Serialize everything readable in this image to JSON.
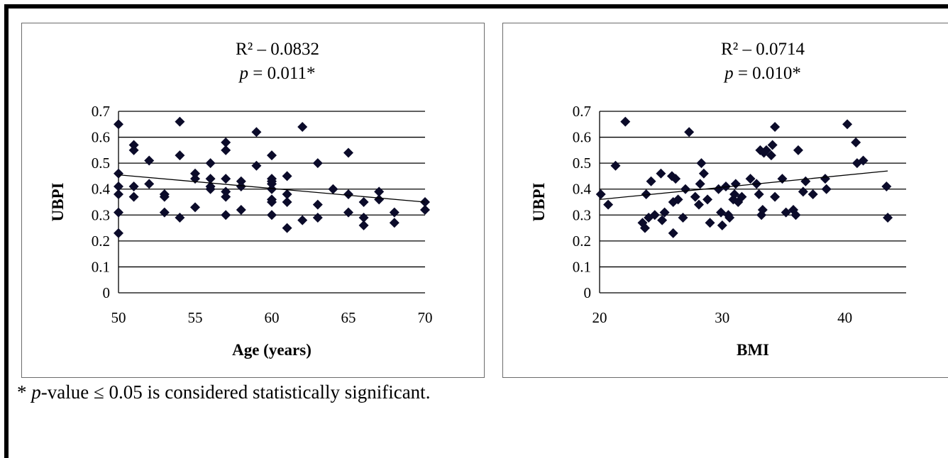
{
  "footnote": {
    "star": "* ",
    "p_italic": "p",
    "rest": "-value ≤ 0.05 is considered statistically significant."
  },
  "chart_data": [
    {
      "type": "scatter",
      "stat_line1": "R² – 0.0832",
      "stat_p_italic": "p",
      "stat_p_rest": " = 0.011*",
      "xlabel": "Age (years)",
      "ylabel": "UBPI",
      "xlim": [
        50,
        70
      ],
      "ylim": [
        0,
        0.7
      ],
      "x_ticks": [
        50,
        55,
        60,
        65,
        70
      ],
      "y_ticks": [
        0,
        0.1,
        0.2,
        0.3,
        0.4,
        0.5,
        0.6,
        0.7
      ],
      "x_tick_labels": [
        "50",
        "55",
        "60",
        "65",
        "70"
      ],
      "y_tick_labels": [
        "0",
        "0.1",
        "0.2",
        "0.3",
        "0.4",
        "0.5",
        "0.6",
        "0.7"
      ],
      "grid": "horizontal",
      "marker_color": "#0b0b2a",
      "trendline": {
        "x": [
          50,
          70
        ],
        "y": [
          0.455,
          0.35
        ]
      },
      "points": [
        [
          50,
          0.65
        ],
        [
          50,
          0.46
        ],
        [
          50,
          0.41
        ],
        [
          50,
          0.38
        ],
        [
          50,
          0.31
        ],
        [
          50,
          0.23
        ],
        [
          51,
          0.57
        ],
        [
          51,
          0.55
        ],
        [
          51,
          0.41
        ],
        [
          51,
          0.37
        ],
        [
          52,
          0.51
        ],
        [
          52,
          0.42
        ],
        [
          53,
          0.38
        ],
        [
          53,
          0.37
        ],
        [
          53,
          0.31
        ],
        [
          54,
          0.66
        ],
        [
          54,
          0.53
        ],
        [
          54,
          0.29
        ],
        [
          55,
          0.46
        ],
        [
          55,
          0.44
        ],
        [
          55,
          0.33
        ],
        [
          56,
          0.5
        ],
        [
          56,
          0.44
        ],
        [
          56,
          0.41
        ],
        [
          56,
          0.4
        ],
        [
          57,
          0.58
        ],
        [
          57,
          0.55
        ],
        [
          57,
          0.44
        ],
        [
          57,
          0.39
        ],
        [
          57,
          0.37
        ],
        [
          57,
          0.3
        ],
        [
          58,
          0.43
        ],
        [
          58,
          0.41
        ],
        [
          58,
          0.32
        ],
        [
          59,
          0.62
        ],
        [
          59,
          0.49
        ],
        [
          60,
          0.53
        ],
        [
          60,
          0.44
        ],
        [
          60,
          0.43
        ],
        [
          60,
          0.42
        ],
        [
          60,
          0.4
        ],
        [
          60,
          0.36
        ],
        [
          60,
          0.35
        ],
        [
          60,
          0.3
        ],
        [
          61,
          0.45
        ],
        [
          61,
          0.38
        ],
        [
          61,
          0.35
        ],
        [
          61,
          0.25
        ],
        [
          62,
          0.64
        ],
        [
          62,
          0.28
        ],
        [
          63,
          0.5
        ],
        [
          63,
          0.34
        ],
        [
          63,
          0.29
        ],
        [
          64,
          0.4
        ],
        [
          65,
          0.54
        ],
        [
          65,
          0.38
        ],
        [
          65,
          0.31
        ],
        [
          66,
          0.35
        ],
        [
          66,
          0.29
        ],
        [
          66,
          0.26
        ],
        [
          67,
          0.39
        ],
        [
          67,
          0.36
        ],
        [
          68,
          0.31
        ],
        [
          68,
          0.27
        ],
        [
          70,
          0.35
        ],
        [
          70,
          0.32
        ]
      ]
    },
    {
      "type": "scatter",
      "stat_line1": "R² – 0.0714",
      "stat_p_italic": "p",
      "stat_p_rest": " = 0.010*",
      "xlabel": "BMI",
      "ylabel": "UBPI",
      "xlim": [
        20,
        45
      ],
      "ylim": [
        0,
        0.7
      ],
      "x_ticks": [
        20,
        30,
        40
      ],
      "y_ticks": [
        0,
        0.1,
        0.2,
        0.3,
        0.4,
        0.5,
        0.6,
        0.7
      ],
      "x_tick_labels": [
        "20",
        "30",
        "40"
      ],
      "y_tick_labels": [
        "0",
        "0.1",
        "0.2",
        "0.3",
        "0.4",
        "0.5",
        "0.6",
        "0.7"
      ],
      "grid": "horizontal",
      "marker_color": "#0b0b2a",
      "trendline": {
        "x": [
          20,
          43.5
        ],
        "y": [
          0.36,
          0.47
        ]
      },
      "points": [
        [
          20.1,
          0.38
        ],
        [
          20.7,
          0.34
        ],
        [
          21.3,
          0.49
        ],
        [
          22.1,
          0.66
        ],
        [
          23.5,
          0.27
        ],
        [
          23.7,
          0.25
        ],
        [
          23.8,
          0.38
        ],
        [
          24.0,
          0.29
        ],
        [
          24.2,
          0.43
        ],
        [
          24.5,
          0.3
        ],
        [
          25.0,
          0.46
        ],
        [
          25.1,
          0.28
        ],
        [
          25.3,
          0.31
        ],
        [
          25.9,
          0.45
        ],
        [
          26.0,
          0.23
        ],
        [
          26.0,
          0.35
        ],
        [
          26.2,
          0.44
        ],
        [
          26.4,
          0.36
        ],
        [
          26.8,
          0.29
        ],
        [
          27.0,
          0.4
        ],
        [
          27.3,
          0.62
        ],
        [
          27.8,
          0.37
        ],
        [
          28.1,
          0.34
        ],
        [
          28.2,
          0.42
        ],
        [
          28.3,
          0.5
        ],
        [
          28.5,
          0.46
        ],
        [
          28.8,
          0.36
        ],
        [
          29.0,
          0.27
        ],
        [
          29.7,
          0.4
        ],
        [
          29.9,
          0.31
        ],
        [
          30.0,
          0.26
        ],
        [
          30.3,
          0.41
        ],
        [
          30.5,
          0.3
        ],
        [
          30.6,
          0.29
        ],
        [
          30.9,
          0.36
        ],
        [
          31.0,
          0.38
        ],
        [
          31.1,
          0.42
        ],
        [
          31.3,
          0.35
        ],
        [
          31.6,
          0.37
        ],
        [
          32.3,
          0.44
        ],
        [
          32.8,
          0.42
        ],
        [
          33.0,
          0.38
        ],
        [
          33.1,
          0.55
        ],
        [
          33.2,
          0.3
        ],
        [
          33.3,
          0.32
        ],
        [
          33.4,
          0.54
        ],
        [
          33.6,
          0.55
        ],
        [
          34.0,
          0.53
        ],
        [
          34.1,
          0.57
        ],
        [
          34.3,
          0.64
        ],
        [
          34.3,
          0.37
        ],
        [
          34.9,
          0.44
        ],
        [
          35.2,
          0.31
        ],
        [
          35.8,
          0.32
        ],
        [
          36.0,
          0.3
        ],
        [
          36.2,
          0.55
        ],
        [
          36.6,
          0.39
        ],
        [
          36.8,
          0.43
        ],
        [
          37.4,
          0.38
        ],
        [
          38.4,
          0.44
        ],
        [
          38.5,
          0.4
        ],
        [
          40.2,
          0.65
        ],
        [
          40.9,
          0.58
        ],
        [
          41.0,
          0.5
        ],
        [
          41.5,
          0.51
        ],
        [
          43.4,
          0.41
        ],
        [
          43.5,
          0.29
        ]
      ]
    }
  ]
}
